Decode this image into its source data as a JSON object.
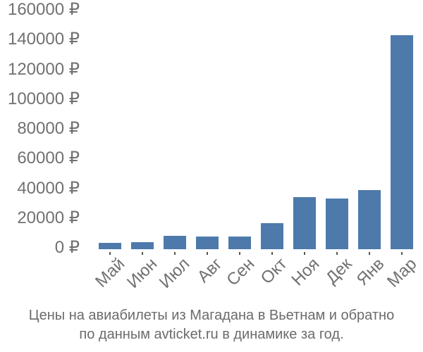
{
  "chart_data": {
    "type": "bar",
    "categories": [
      "Май",
      "Июн",
      "Июл",
      "Авг",
      "Сен",
      "Окт",
      "Ноя",
      "Дек",
      "Янв",
      "Мар"
    ],
    "values": [
      4300,
      4800,
      8900,
      8500,
      8400,
      17400,
      35000,
      34200,
      39800,
      144000
    ],
    "title": "",
    "xlabel": "",
    "ylabel": "",
    "ylim": [
      0,
      160000
    ],
    "ytick_step": 20000,
    "ytick_suffix": " ₽",
    "ytick_labels": [
      "160000 ₽",
      "140000 ₽",
      "120000 ₽",
      "100000 ₽",
      "80000 ₽",
      "60000 ₽",
      "40000 ₽",
      "20000 ₽",
      "0 ₽"
    ],
    "grid": false,
    "legend": false,
    "bar_color": "#4d7aab",
    "axis_label_color": "#717171",
    "tick_mark_color": "#555555"
  },
  "caption": {
    "line1": "Цены на авиабилеты из Магадана в Вьетнам и обратно",
    "line2": "по данным avticket.ru в динамике за год.",
    "color": "#6b6b6b"
  }
}
